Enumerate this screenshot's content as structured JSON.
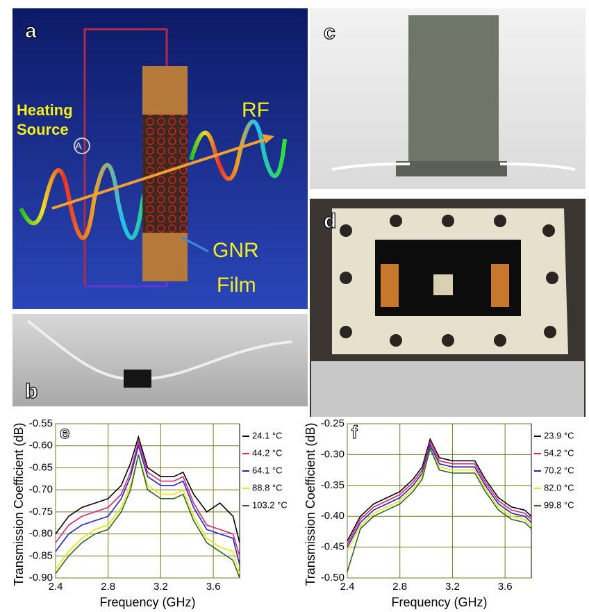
{
  "panels": {
    "a": {
      "label": "a",
      "annotations": [
        "Heating",
        "Source",
        "RF",
        "GNR",
        "Film"
      ],
      "ammeter": "A"
    },
    "b": {
      "label": "b"
    },
    "c": {
      "label": "c"
    },
    "d": {
      "label": "d"
    }
  },
  "chart_data": [
    {
      "type": "line",
      "panel_label": "e",
      "y_label": "Transmission Coefficient (dB)",
      "x_label": "Frequency (GHz)",
      "x": [
        2.4,
        2.5,
        2.6,
        2.7,
        2.8,
        2.9,
        2.97,
        3.03,
        3.1,
        3.2,
        3.3,
        3.37,
        3.45,
        3.55,
        3.65,
        3.75,
        3.8
      ],
      "xlim": [
        2.4,
        3.8
      ],
      "xticks": [
        2.4,
        2.8,
        3.2,
        3.6
      ],
      "ylim": [
        -0.9,
        -0.55
      ],
      "yticks": [
        -0.55,
        {
          "value": -0.6,
          "label": "-0.60"
        },
        -0.65,
        {
          "value": -0.7,
          "label": "-0.70"
        },
        -0.75,
        {
          "value": -0.8,
          "label": "-0.80"
        },
        -0.85,
        {
          "value": -0.9,
          "label": "-0.90"
        }
      ],
      "grid": true,
      "series": [
        {
          "name": "24.1 °C",
          "color": "#000000",
          "values": [
            -0.8,
            -0.76,
            -0.74,
            -0.73,
            -0.72,
            -0.69,
            -0.64,
            -0.58,
            -0.65,
            -0.67,
            -0.67,
            -0.66,
            -0.71,
            -0.75,
            -0.73,
            -0.76,
            -0.82
          ]
        },
        {
          "name": "44.2 °C",
          "color": "#e0207a",
          "values": [
            -0.82,
            -0.78,
            -0.76,
            -0.75,
            -0.74,
            -0.71,
            -0.66,
            -0.59,
            -0.66,
            -0.68,
            -0.68,
            -0.67,
            -0.73,
            -0.78,
            -0.79,
            -0.8,
            -0.85
          ]
        },
        {
          "name": "64.1 °C",
          "color": "#2020e0",
          "values": [
            -0.84,
            -0.8,
            -0.78,
            -0.77,
            -0.76,
            -0.72,
            -0.67,
            -0.6,
            -0.67,
            -0.69,
            -0.69,
            -0.68,
            -0.74,
            -0.79,
            -0.8,
            -0.81,
            -0.87
          ]
        },
        {
          "name": "88.8 °C",
          "color": "#e8e800",
          "values": [
            -0.88,
            -0.84,
            -0.81,
            -0.79,
            -0.78,
            -0.74,
            -0.69,
            -0.62,
            -0.69,
            -0.71,
            -0.71,
            -0.7,
            -0.76,
            -0.81,
            -0.83,
            -0.84,
            -0.89
          ]
        },
        {
          "name": "103.2 °C",
          "color": "#2a6a1a",
          "values": [
            -0.89,
            -0.85,
            -0.82,
            -0.8,
            -0.79,
            -0.75,
            -0.7,
            -0.62,
            -0.7,
            -0.72,
            -0.72,
            -0.71,
            -0.77,
            -0.82,
            -0.84,
            -0.86,
            -0.9
          ]
        }
      ]
    },
    {
      "type": "line",
      "panel_label": "f",
      "y_label": "Transmission Coefficient (dB)",
      "x_label": "Frequency (GHz)",
      "x": [
        2.4,
        2.5,
        2.6,
        2.7,
        2.8,
        2.9,
        2.97,
        3.03,
        3.1,
        3.2,
        3.3,
        3.37,
        3.45,
        3.55,
        3.65,
        3.75,
        3.8
      ],
      "xlim": [
        2.4,
        3.8
      ],
      "xticks": [
        2.4,
        2.8,
        3.2,
        3.6
      ],
      "ylim": [
        -0.5,
        -0.25
      ],
      "yticks": [
        -0.25,
        {
          "value": -0.3,
          "label": "-0.30"
        },
        -0.35,
        {
          "value": -0.4,
          "label": "-0.40"
        },
        -0.45,
        {
          "value": -0.5,
          "label": "-0.50"
        }
      ],
      "grid": true,
      "series": [
        {
          "name": "23.9 °C",
          "color": "#000000",
          "values": [
            -0.44,
            -0.4,
            -0.38,
            -0.37,
            -0.36,
            -0.34,
            -0.32,
            -0.275,
            -0.305,
            -0.31,
            -0.31,
            -0.31,
            -0.34,
            -0.37,
            -0.385,
            -0.39,
            -0.4
          ]
        },
        {
          "name": "54.2 °C",
          "color": "#e0207a",
          "values": [
            -0.445,
            -0.405,
            -0.385,
            -0.375,
            -0.365,
            -0.345,
            -0.325,
            -0.28,
            -0.31,
            -0.315,
            -0.315,
            -0.315,
            -0.345,
            -0.375,
            -0.39,
            -0.395,
            -0.405
          ]
        },
        {
          "name": "70.2 °C",
          "color": "#2020e0",
          "values": [
            -0.45,
            -0.41,
            -0.39,
            -0.38,
            -0.37,
            -0.35,
            -0.33,
            -0.285,
            -0.315,
            -0.32,
            -0.32,
            -0.32,
            -0.35,
            -0.38,
            -0.395,
            -0.4,
            -0.41
          ]
        },
        {
          "name": "82.0 °C",
          "color": "#e8e800",
          "values": [
            -0.455,
            -0.415,
            -0.395,
            -0.385,
            -0.375,
            -0.355,
            -0.335,
            -0.29,
            -0.32,
            -0.325,
            -0.325,
            -0.325,
            -0.355,
            -0.385,
            -0.4,
            -0.405,
            -0.415
          ]
        },
        {
          "name": "99.8 °C",
          "color": "#2a6a1a",
          "values": [
            -0.49,
            -0.42,
            -0.4,
            -0.39,
            -0.38,
            -0.36,
            -0.34,
            -0.29,
            -0.325,
            -0.33,
            -0.33,
            -0.33,
            -0.36,
            -0.39,
            -0.405,
            -0.41,
            -0.42
          ]
        }
      ]
    }
  ]
}
